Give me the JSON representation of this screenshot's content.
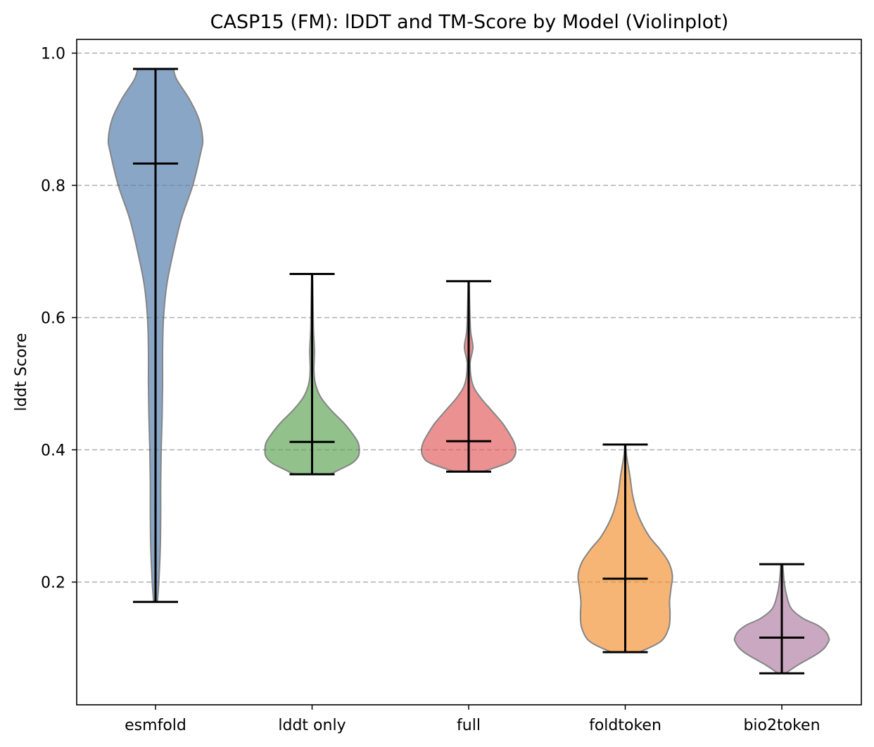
{
  "chart_data": {
    "type": "violin",
    "title": "CASP15 (FM): lDDT and TM-Score by Model (Violinplot)",
    "xlabel": "",
    "ylabel": "lddt Score",
    "ylim": [
      0.0,
      1.0
    ],
    "yticks": [
      0.2,
      0.4,
      0.6,
      0.8,
      1.0
    ],
    "ytick_labels": [
      "0.2",
      "0.4",
      "0.6",
      "0.8",
      "1.0"
    ],
    "grid": "y dashed",
    "categories": [
      "esmfold",
      "lddt only",
      "full",
      "foldtoken",
      "bio2token"
    ],
    "series": [
      {
        "category": "esmfold",
        "color": "#4c78a8",
        "min": 0.17,
        "max": 0.976,
        "median": 0.833,
        "density": [
          [
            0.17,
            0.04
          ],
          [
            0.2,
            0.07
          ],
          [
            0.25,
            0.1
          ],
          [
            0.3,
            0.11
          ],
          [
            0.35,
            0.11
          ],
          [
            0.4,
            0.12
          ],
          [
            0.45,
            0.14
          ],
          [
            0.5,
            0.15
          ],
          [
            0.55,
            0.15
          ],
          [
            0.6,
            0.17
          ],
          [
            0.65,
            0.24
          ],
          [
            0.7,
            0.38
          ],
          [
            0.75,
            0.55
          ],
          [
            0.8,
            0.79
          ],
          [
            0.85,
            0.96
          ],
          [
            0.87,
            1.0
          ],
          [
            0.9,
            0.92
          ],
          [
            0.93,
            0.72
          ],
          [
            0.96,
            0.45
          ],
          [
            0.976,
            0.38
          ]
        ]
      },
      {
        "category": "lddt only",
        "color": "#59a14f",
        "min": 0.363,
        "max": 0.666,
        "median": 0.412,
        "density": [
          [
            0.363,
            0.38
          ],
          [
            0.37,
            0.58
          ],
          [
            0.38,
            0.85
          ],
          [
            0.39,
            0.98
          ],
          [
            0.4,
            1.0
          ],
          [
            0.41,
            0.98
          ],
          [
            0.42,
            0.9
          ],
          [
            0.44,
            0.68
          ],
          [
            0.46,
            0.4
          ],
          [
            0.48,
            0.18
          ],
          [
            0.5,
            0.07
          ],
          [
            0.52,
            0.04
          ],
          [
            0.55,
            0.05
          ],
          [
            0.58,
            0.03
          ],
          [
            0.62,
            0.02
          ],
          [
            0.666,
            0.01
          ]
        ]
      },
      {
        "category": "full",
        "color": "#e15759",
        "min": 0.367,
        "max": 0.655,
        "median": 0.413,
        "density": [
          [
            0.367,
            0.3
          ],
          [
            0.38,
            0.82
          ],
          [
            0.39,
            0.97
          ],
          [
            0.4,
            1.0
          ],
          [
            0.41,
            0.97
          ],
          [
            0.42,
            0.9
          ],
          [
            0.44,
            0.72
          ],
          [
            0.46,
            0.48
          ],
          [
            0.48,
            0.24
          ],
          [
            0.5,
            0.08
          ],
          [
            0.53,
            0.03
          ],
          [
            0.555,
            0.09
          ],
          [
            0.58,
            0.04
          ],
          [
            0.62,
            0.02
          ],
          [
            0.655,
            0.01
          ]
        ]
      },
      {
        "category": "foldtoken",
        "color": "#f28e2b",
        "min": 0.094,
        "max": 0.408,
        "median": 0.205,
        "density": [
          [
            0.094,
            0.3
          ],
          [
            0.11,
            0.75
          ],
          [
            0.13,
            0.92
          ],
          [
            0.15,
            0.95
          ],
          [
            0.17,
            0.94
          ],
          [
            0.19,
            0.97
          ],
          [
            0.21,
            1.0
          ],
          [
            0.23,
            0.92
          ],
          [
            0.25,
            0.73
          ],
          [
            0.27,
            0.5
          ],
          [
            0.3,
            0.28
          ],
          [
            0.33,
            0.16
          ],
          [
            0.36,
            0.1
          ],
          [
            0.39,
            0.03
          ],
          [
            0.408,
            0.01
          ]
        ]
      },
      {
        "category": "bio2token",
        "color": "#b07aa1",
        "min": 0.062,
        "max": 0.227,
        "median": 0.116,
        "density": [
          [
            0.062,
            0.08
          ],
          [
            0.075,
            0.35
          ],
          [
            0.09,
            0.72
          ],
          [
            0.1,
            0.9
          ],
          [
            0.11,
            0.99
          ],
          [
            0.115,
            1.0
          ],
          [
            0.125,
            0.93
          ],
          [
            0.135,
            0.75
          ],
          [
            0.145,
            0.45
          ],
          [
            0.16,
            0.2
          ],
          [
            0.18,
            0.1
          ],
          [
            0.2,
            0.05
          ],
          [
            0.227,
            0.02
          ]
        ]
      }
    ]
  }
}
